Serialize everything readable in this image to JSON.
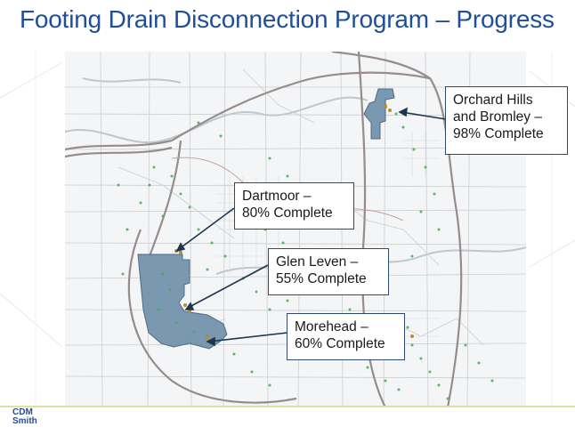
{
  "title": "Footing Drain Disconnection Program – Progress",
  "areas": [
    {
      "name": "orchard-hills",
      "line1": "Orchard Hills",
      "line2": "and Bromley –",
      "line3": "98% Complete"
    },
    {
      "name": "dartmoor",
      "line1": "Dartmoor –",
      "line2": "80% Complete"
    },
    {
      "name": "glen-leven",
      "line1": "Glen Leven –",
      "line2": "55% Complete"
    },
    {
      "name": "morehead",
      "line1": "Morehead –",
      "line2": "60% Complete"
    }
  ],
  "logo": {
    "line1": "CDM",
    "line2": "Smith"
  },
  "colors": {
    "title": "#1f4e9c",
    "program_area": "#6f8fa8",
    "disconnection_point": "#3fae49",
    "highways": "#9b8f8f",
    "streets": "#c9ccd0",
    "water": "#bfc9cf"
  },
  "icons": [
    "callout-arrow-icon",
    "disconnection-point-icon"
  ]
}
